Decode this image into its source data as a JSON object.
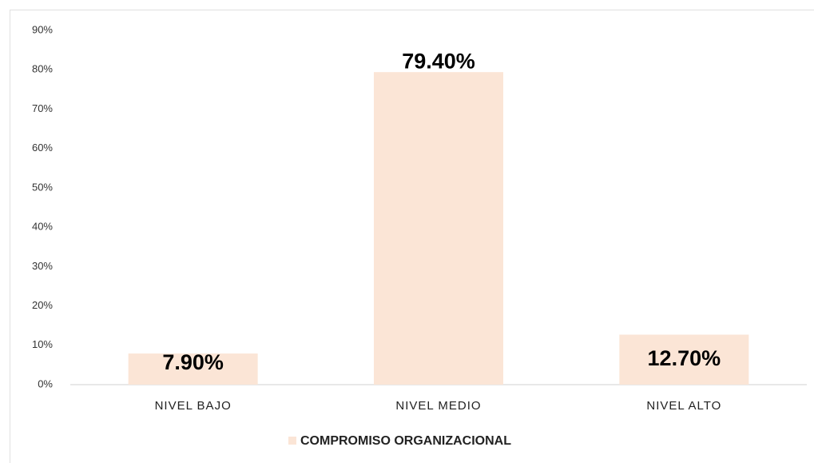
{
  "chart_data": {
    "type": "bar",
    "categories": [
      "NIVEL BAJO",
      "NIVEL MEDIO",
      "NIVEL ALTO"
    ],
    "series": [
      {
        "name": "COMPROMISO ORGANIZACIONAL",
        "color": "#fbe5d6",
        "values": [
          7.9,
          79.4,
          12.7
        ],
        "value_labels": [
          "7.90%",
          "79.40%",
          "12.70%"
        ]
      }
    ],
    "ylim": [
      0,
      90
    ],
    "yticks": [
      {
        "value": 0,
        "label": "0%"
      },
      {
        "value": 10,
        "label": "10%"
      },
      {
        "value": 20,
        "label": "20%"
      },
      {
        "value": 30,
        "label": "30%"
      },
      {
        "value": 40,
        "label": "40%"
      },
      {
        "value": 50,
        "label": "50%"
      },
      {
        "value": 60,
        "label": "60%"
      },
      {
        "value": 70,
        "label": "70%"
      },
      {
        "value": 80,
        "label": "80%"
      },
      {
        "value": 90,
        "label": "90%"
      }
    ],
    "grid": false,
    "legend": "bottom"
  }
}
